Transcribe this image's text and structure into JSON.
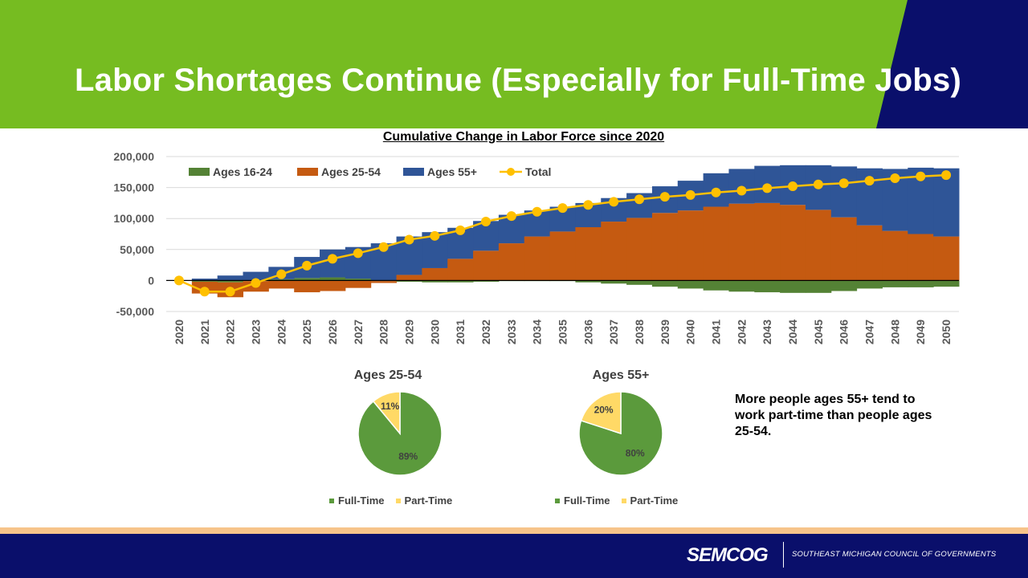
{
  "slide": {
    "title": "Labor Shortages Continue (Especially for Full-Time Jobs)",
    "note": "More people ages 55+ tend to work part-time than people ages 25-54.",
    "colors": {
      "green_banner": "#76bc21",
      "navy": "#0a0f6b",
      "stripe": "#f7c48a"
    }
  },
  "footer": {
    "logo": "SEMCOG",
    "org_name": "SOUTHEAST MICHIGAN COUNCIL OF GOVERNMENTS"
  },
  "chart_data": [
    {
      "type": "area",
      "title": "Cumulative Change in Labor Force since 2020",
      "x": [
        "2020",
        "2021",
        "2022",
        "2023",
        "2024",
        "2025",
        "2026",
        "2027",
        "2028",
        "2029",
        "2030",
        "2031",
        "2032",
        "2033",
        "2034",
        "2035",
        "2036",
        "2037",
        "2038",
        "2039",
        "2040",
        "2041",
        "2042",
        "2043",
        "2044",
        "2045",
        "2046",
        "2047",
        "2048",
        "2049",
        "2050"
      ],
      "ylim": [
        -50000,
        200000
      ],
      "yticks": [
        -50000,
        0,
        50000,
        100000,
        150000,
        200000
      ],
      "ytick_labels": [
        "-50,000",
        "0",
        "50,000",
        "100,000",
        "150,000",
        "200,000"
      ],
      "legend_position": "top-left",
      "grid": true,
      "series": [
        {
          "name": "Ages 16-24",
          "type": "stacked-area",
          "color": "#548235",
          "values": [
            0,
            -2000,
            -3000,
            -1000,
            2000,
            4000,
            5000,
            3000,
            -1000,
            -2000,
            -3000,
            -3000,
            -2000,
            -1000,
            -1000,
            -1000,
            -3000,
            -5000,
            -7000,
            -10000,
            -13000,
            -16000,
            -18000,
            -19000,
            -20000,
            -20000,
            -17000,
            -13000,
            -11000,
            -11000,
            -10000
          ]
        },
        {
          "name": "Ages 25-54",
          "type": "stacked-area",
          "color": "#c55a11",
          "values": [
            0,
            -19000,
            -24000,
            -17000,
            -13000,
            -19000,
            -17000,
            -12000,
            -3000,
            9000,
            20000,
            35000,
            48000,
            60000,
            71000,
            79000,
            86000,
            95000,
            101000,
            109000,
            113000,
            119000,
            124000,
            125000,
            122000,
            114000,
            102000,
            89000,
            80000,
            75000,
            71000
          ]
        },
        {
          "name": "Ages 55+",
          "type": "stacked-area",
          "color": "#2f5597",
          "values": [
            0,
            3000,
            8000,
            14000,
            20000,
            34000,
            45000,
            51000,
            60000,
            62000,
            58000,
            50000,
            48000,
            46000,
            42000,
            40000,
            39000,
            38000,
            40000,
            43000,
            48000,
            54000,
            56000,
            60000,
            64000,
            72000,
            82000,
            92000,
            100000,
            107000,
            110000
          ]
        },
        {
          "name": "Total",
          "type": "line",
          "color": "#ffc000",
          "values": [
            0,
            -18000,
            -18000,
            -4000,
            10000,
            24000,
            35000,
            44000,
            54000,
            66000,
            72000,
            81000,
            95000,
            104000,
            111000,
            117000,
            122000,
            127000,
            131000,
            135000,
            138000,
            142000,
            145000,
            149000,
            152000,
            155000,
            157000,
            161000,
            165000,
            168000,
            170000
          ]
        }
      ]
    },
    {
      "type": "pie",
      "title": "Ages 25-54",
      "categories": [
        "Full-Time",
        "Part-Time"
      ],
      "values": [
        89,
        11
      ],
      "labels": [
        "89%",
        "11%"
      ],
      "colors": [
        "#5b9a3c",
        "#ffd966"
      ],
      "legend_position": "bottom"
    },
    {
      "type": "pie",
      "title": "Ages 55+",
      "categories": [
        "Full-Time",
        "Part-Time"
      ],
      "values": [
        80,
        20
      ],
      "labels": [
        "80%",
        "20%"
      ],
      "colors": [
        "#5b9a3c",
        "#ffd966"
      ],
      "legend_position": "bottom"
    }
  ]
}
